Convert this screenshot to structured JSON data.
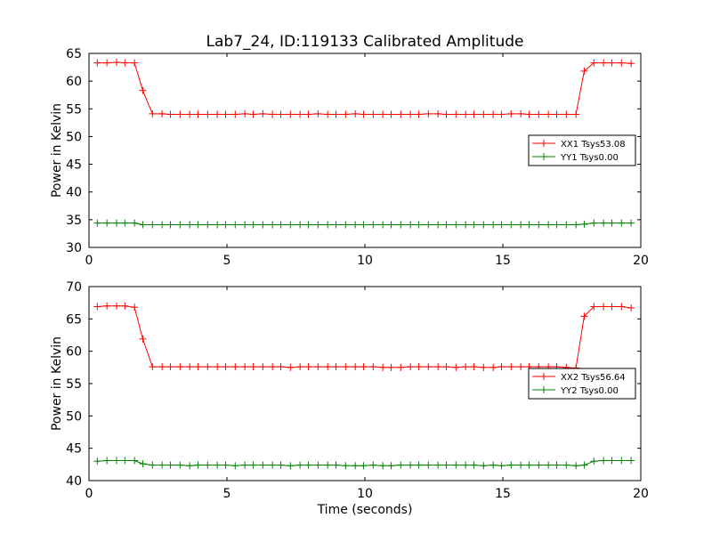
{
  "figure": {
    "title": "Lab7_24, ID:119133 Calibrated Amplitude",
    "xlabel": "Time (seconds)"
  },
  "chart_data": [
    {
      "type": "line",
      "ylabel": "Power in Kelvin",
      "xlim": [
        0,
        20
      ],
      "ylim": [
        30,
        65
      ],
      "xticks": [
        0,
        5,
        10,
        15,
        20
      ],
      "yticks": [
        30,
        35,
        40,
        45,
        50,
        55,
        60,
        65
      ],
      "grid": false,
      "legend_position": "right",
      "series": [
        {
          "name": "XX1 Tsys53.08",
          "color": "#ff0000",
          "marker": "+",
          "x": [
            0.3,
            0.65,
            1.0,
            1.3,
            1.65,
            1.95,
            2.3,
            2.65,
            2.95,
            3.3,
            3.65,
            3.95,
            4.3,
            4.65,
            4.95,
            5.3,
            5.65,
            5.95,
            6.3,
            6.65,
            6.95,
            7.3,
            7.65,
            7.95,
            8.3,
            8.65,
            8.95,
            9.3,
            9.65,
            9.95,
            10.3,
            10.65,
            10.95,
            11.3,
            11.65,
            11.95,
            12.3,
            12.65,
            12.95,
            13.3,
            13.65,
            13.95,
            14.3,
            14.65,
            14.95,
            15.3,
            15.65,
            15.95,
            16.3,
            16.65,
            16.95,
            17.3,
            17.65,
            17.95,
            18.3,
            18.65,
            18.95,
            19.3,
            19.65
          ],
          "y": [
            63.3,
            63.3,
            63.4,
            63.3,
            63.3,
            58.3,
            54.1,
            54.1,
            54.0,
            54.0,
            54.0,
            54.0,
            54.0,
            54.0,
            54.0,
            54.0,
            54.1,
            54.0,
            54.1,
            54.0,
            54.0,
            54.0,
            54.0,
            54.0,
            54.1,
            54.0,
            54.0,
            54.0,
            54.1,
            54.0,
            54.0,
            54.0,
            54.0,
            54.0,
            54.0,
            54.0,
            54.1,
            54.1,
            54.0,
            54.0,
            54.0,
            54.0,
            54.0,
            54.0,
            54.0,
            54.1,
            54.1,
            54.0,
            54.0,
            54.0,
            54.0,
            54.0,
            54.0,
            61.8,
            63.3,
            63.3,
            63.3,
            63.3,
            63.2
          ]
        },
        {
          "name": "YY1 Tsys0.00",
          "color": "#008000",
          "marker": "+",
          "x": [
            0.3,
            0.65,
            1.0,
            1.3,
            1.65,
            1.95,
            2.3,
            2.65,
            2.95,
            3.3,
            3.65,
            3.95,
            4.3,
            4.65,
            4.95,
            5.3,
            5.65,
            5.95,
            6.3,
            6.65,
            6.95,
            7.3,
            7.65,
            7.95,
            8.3,
            8.65,
            8.95,
            9.3,
            9.65,
            9.95,
            10.3,
            10.65,
            10.95,
            11.3,
            11.65,
            11.95,
            12.3,
            12.65,
            12.95,
            13.3,
            13.65,
            13.95,
            14.3,
            14.65,
            14.95,
            15.3,
            15.65,
            15.95,
            16.3,
            16.65,
            16.95,
            17.3,
            17.65,
            17.95,
            18.3,
            18.65,
            18.95,
            19.3,
            19.65
          ],
          "y": [
            34.4,
            34.4,
            34.4,
            34.4,
            34.4,
            34.1,
            34.1,
            34.1,
            34.1,
            34.1,
            34.1,
            34.1,
            34.1,
            34.1,
            34.1,
            34.1,
            34.1,
            34.1,
            34.1,
            34.1,
            34.1,
            34.1,
            34.1,
            34.1,
            34.1,
            34.1,
            34.1,
            34.1,
            34.1,
            34.1,
            34.1,
            34.1,
            34.1,
            34.1,
            34.1,
            34.1,
            34.1,
            34.1,
            34.1,
            34.1,
            34.1,
            34.1,
            34.1,
            34.1,
            34.1,
            34.1,
            34.1,
            34.1,
            34.1,
            34.1,
            34.1,
            34.1,
            34.1,
            34.2,
            34.4,
            34.4,
            34.4,
            34.4,
            34.4
          ]
        }
      ]
    },
    {
      "type": "line",
      "ylabel": "Power in Kelvin",
      "xlim": [
        0,
        20
      ],
      "ylim": [
        40,
        70
      ],
      "xticks": [
        0,
        5,
        10,
        15,
        20
      ],
      "yticks": [
        40,
        45,
        50,
        55,
        60,
        65,
        70
      ],
      "grid": false,
      "legend_position": "right",
      "series": [
        {
          "name": "XX2 Tsys56.64",
          "color": "#ff0000",
          "marker": "+",
          "x": [
            0.3,
            0.65,
            1.0,
            1.3,
            1.65,
            1.95,
            2.3,
            2.65,
            2.95,
            3.3,
            3.65,
            3.95,
            4.3,
            4.65,
            4.95,
            5.3,
            5.65,
            5.95,
            6.3,
            6.65,
            6.95,
            7.3,
            7.65,
            7.95,
            8.3,
            8.65,
            8.95,
            9.3,
            9.65,
            9.95,
            10.3,
            10.65,
            10.95,
            11.3,
            11.65,
            11.95,
            12.3,
            12.65,
            12.95,
            13.3,
            13.65,
            13.95,
            14.3,
            14.65,
            14.95,
            15.3,
            15.65,
            15.95,
            16.3,
            16.65,
            16.95,
            17.3,
            17.65,
            17.95,
            18.3,
            18.65,
            18.95,
            19.3,
            19.65
          ],
          "y": [
            66.9,
            67.0,
            67.0,
            67.0,
            66.8,
            61.9,
            57.6,
            57.6,
            57.6,
            57.6,
            57.6,
            57.6,
            57.6,
            57.6,
            57.6,
            57.6,
            57.6,
            57.6,
            57.6,
            57.6,
            57.6,
            57.5,
            57.6,
            57.6,
            57.6,
            57.6,
            57.6,
            57.6,
            57.6,
            57.6,
            57.6,
            57.5,
            57.5,
            57.5,
            57.6,
            57.6,
            57.6,
            57.6,
            57.6,
            57.5,
            57.6,
            57.6,
            57.5,
            57.5,
            57.6,
            57.6,
            57.6,
            57.6,
            57.6,
            57.6,
            57.6,
            57.5,
            57.4,
            65.4,
            66.9,
            66.9,
            66.9,
            66.9,
            66.7
          ]
        },
        {
          "name": "YY2 Tsys0.00",
          "color": "#008000",
          "marker": "+",
          "x": [
            0.3,
            0.65,
            1.0,
            1.3,
            1.65,
            1.95,
            2.3,
            2.65,
            2.95,
            3.3,
            3.65,
            3.95,
            4.3,
            4.65,
            4.95,
            5.3,
            5.65,
            5.95,
            6.3,
            6.65,
            6.95,
            7.3,
            7.65,
            7.95,
            8.3,
            8.65,
            8.95,
            9.3,
            9.65,
            9.95,
            10.3,
            10.65,
            10.95,
            11.3,
            11.65,
            11.95,
            12.3,
            12.65,
            12.95,
            13.3,
            13.65,
            13.95,
            14.3,
            14.65,
            14.95,
            15.3,
            15.65,
            15.95,
            16.3,
            16.65,
            16.95,
            17.3,
            17.65,
            17.95,
            18.3,
            18.65,
            18.95,
            19.3,
            19.65
          ],
          "y": [
            43.0,
            43.1,
            43.1,
            43.1,
            43.1,
            42.6,
            42.4,
            42.4,
            42.4,
            42.4,
            42.3,
            42.4,
            42.4,
            42.4,
            42.4,
            42.3,
            42.4,
            42.4,
            42.4,
            42.4,
            42.4,
            42.3,
            42.4,
            42.4,
            42.4,
            42.4,
            42.4,
            42.3,
            42.3,
            42.3,
            42.4,
            42.3,
            42.3,
            42.4,
            42.4,
            42.4,
            42.4,
            42.4,
            42.4,
            42.4,
            42.4,
            42.4,
            42.3,
            42.4,
            42.3,
            42.4,
            42.4,
            42.4,
            42.4,
            42.4,
            42.4,
            42.4,
            42.3,
            42.4,
            43.0,
            43.1,
            43.1,
            43.1,
            43.1
          ]
        }
      ]
    }
  ]
}
